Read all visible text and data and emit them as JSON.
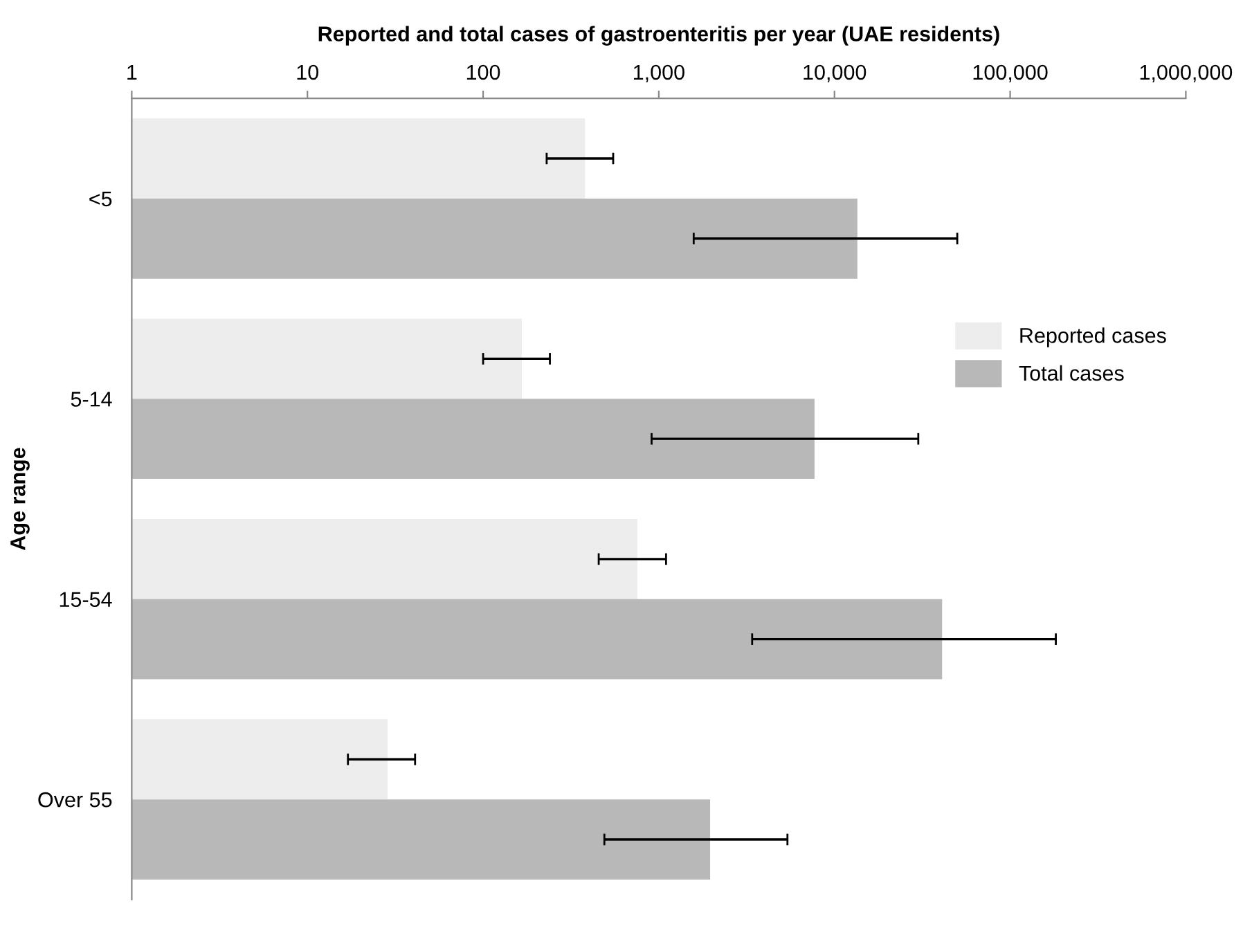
{
  "chart_data": {
    "type": "bar",
    "orientation": "horizontal",
    "xlabel": "Reported and total cases of gastroenteritis per year (UAE residents)",
    "ylabel": "Age range",
    "categories": [
      "<5",
      "5-14",
      "15-54",
      "Over 55"
    ],
    "log": "x",
    "xlim": [
      1,
      1000000
    ],
    "xticks": [
      {
        "value": 1,
        "label": "1"
      },
      {
        "value": 10,
        "label": "10"
      },
      {
        "value": 100,
        "label": "100"
      },
      {
        "value": 1000,
        "label": "1,000"
      },
      {
        "value": 10000,
        "label": "10,000"
      },
      {
        "value": 100000,
        "label": "100,000"
      },
      {
        "value": 1000000,
        "label": "1,000,000"
      }
    ],
    "grid": false,
    "legend": "right",
    "series": [
      {
        "name": "Reported cases",
        "color": "#ededed",
        "values": [
          380,
          166,
          755,
          28.6
        ],
        "errors": [
          [
            230,
            550
          ],
          [
            100,
            240
          ],
          [
            455,
            1100
          ],
          [
            17,
            41
          ]
        ]
      },
      {
        "name": "Total cases",
        "color": "#b8b8b8",
        "values": [
          13500,
          7700,
          41000,
          1960
        ],
        "errors": [
          [
            1580,
            50000
          ],
          [
            910,
            30000
          ],
          [
            3400,
            182000
          ],
          [
            490,
            5400
          ]
        ]
      }
    ]
  }
}
